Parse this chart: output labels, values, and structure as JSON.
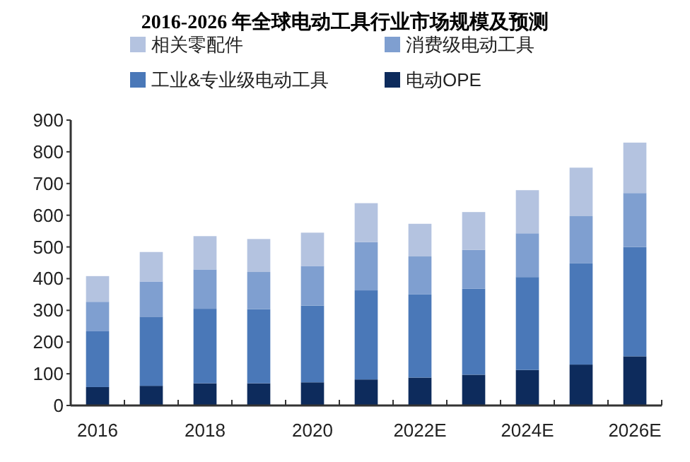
{
  "chart_data": {
    "type": "bar",
    "stacked": true,
    "title": "2016-2026 年全球电动工具行业市场规模及预测",
    "categories": [
      "2016",
      null,
      "2018",
      null,
      "2020",
      null,
      "2022E",
      null,
      "2024E",
      null,
      "2026E"
    ],
    "series": [
      {
        "name": "电动OPE",
        "color": "#0d2b5c",
        "values": [
          58,
          62,
          70,
          70,
          73,
          82,
          88,
          97,
          112,
          129,
          155
        ]
      },
      {
        "name": "工业&专业级电动工具",
        "color": "#4a78b8",
        "values": [
          176,
          218,
          235,
          234,
          242,
          281,
          262,
          271,
          293,
          319,
          345
        ]
      },
      {
        "name": "消费级电动工具",
        "color": "#7f9fd0",
        "values": [
          93,
          111,
          124,
          117,
          125,
          152,
          120,
          123,
          138,
          149,
          170
        ]
      },
      {
        "name": "相关零配件",
        "color": "#b4c3e0",
        "values": [
          81,
          93,
          105,
          104,
          105,
          123,
          103,
          119,
          136,
          153,
          159
        ]
      }
    ],
    "ylim": [
      0,
      900
    ],
    "yticks": [
      0,
      100,
      200,
      300,
      400,
      500,
      600,
      700,
      800,
      900
    ],
    "grid": false,
    "legend": "top"
  }
}
